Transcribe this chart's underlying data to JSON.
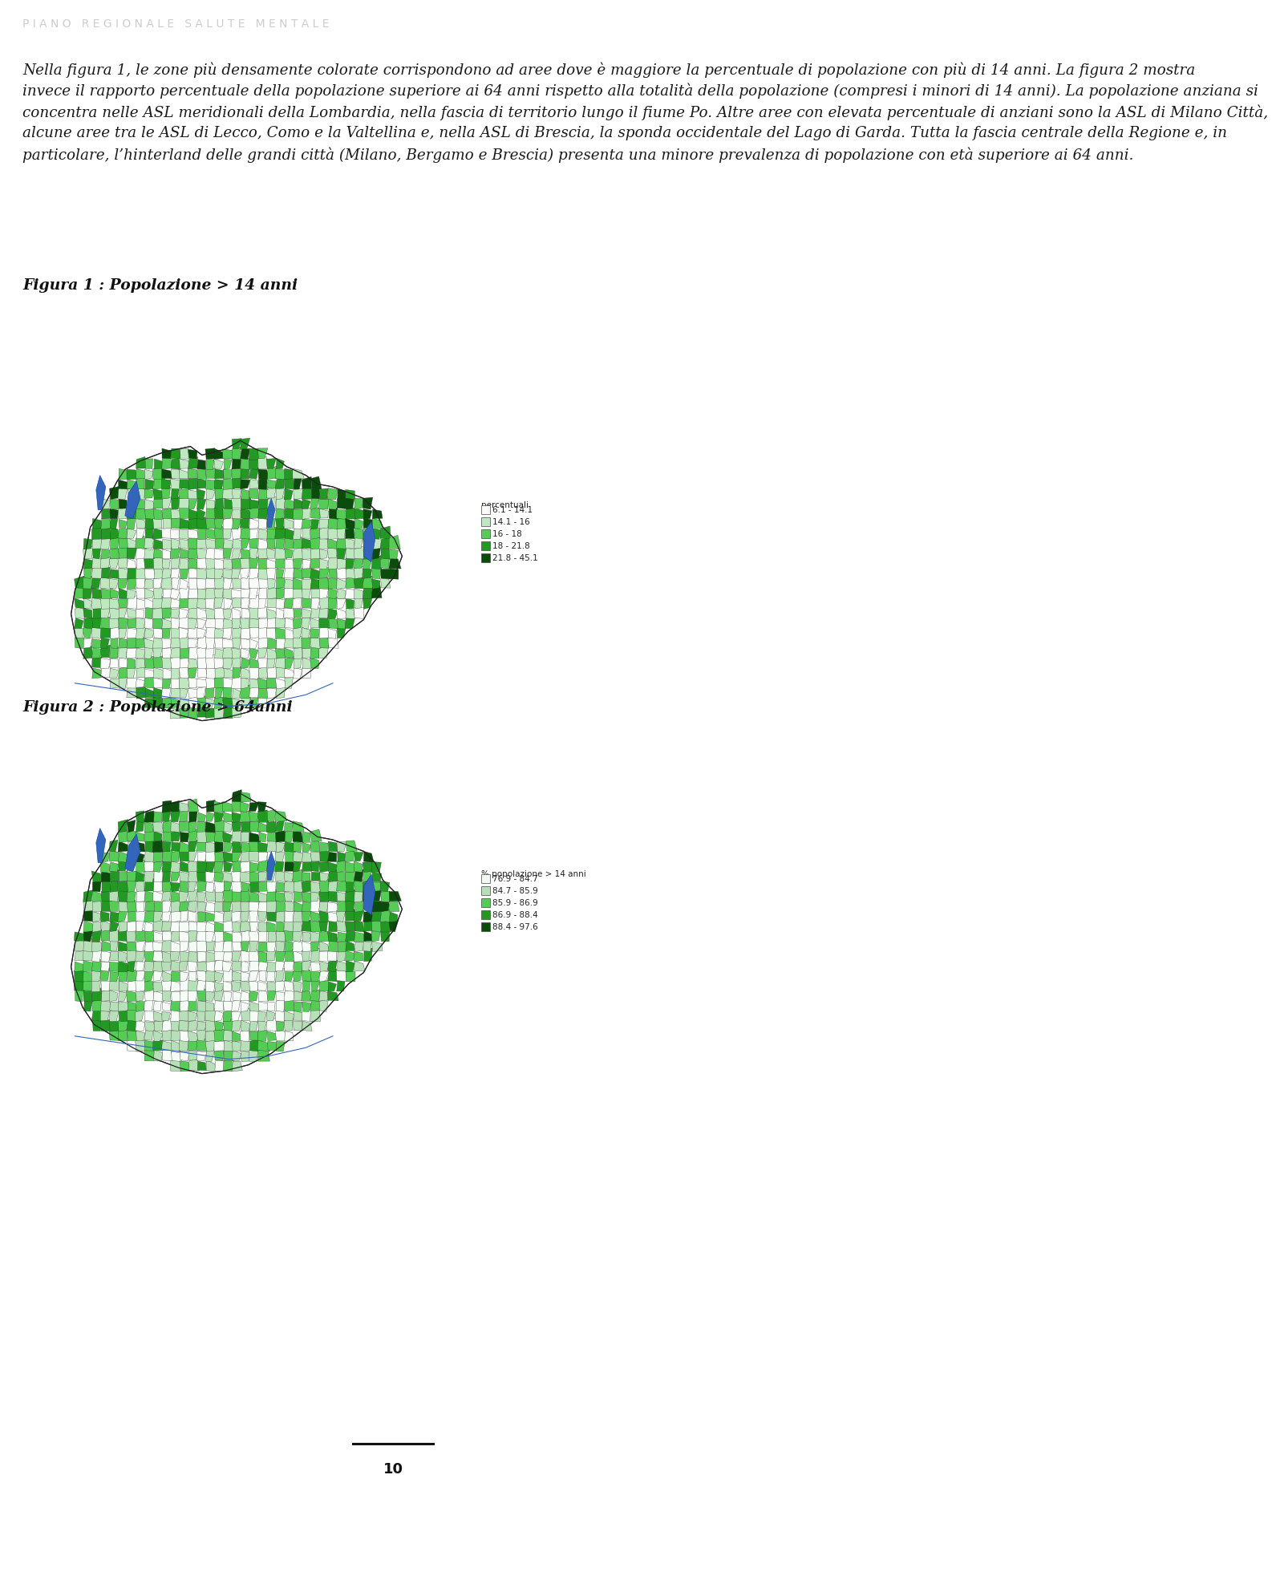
{
  "header_text": "P I A N O   R E G I O N A L E   S A L U T E   M E N T A L E",
  "header_color": "#cccccc",
  "header_fontsize": 10,
  "body_text_lines": [
    "Nella figura 1, le zone più densamente colorate corrispondono ad aree dove è maggiore la percentuale di popolazione con più di 14 anni. La figura 2 mostra",
    "invece il rapporto percentuale della popolazione superiore ai 64 anni rispetto alla totalità della popolazione (compresi i minori di 14 anni). La popolazione anziana si",
    "concentra nelle ASL meridionali della Lombardia, nella fascia di territorio lungo il fiume Po. Altre aree con elevata percentuale di anziani sono la ASL di Milano Città,",
    "alcune aree tra le ASL di Lecco, Como e la Valtellina e, nella ASL di Brescia, la sponda occidentale del Lago di Garda. Tutta la fascia centrale della Regione e, in",
    "particolare, l’hinterland delle grandi città (Milano, Bergamo e Brescia) presenta una minore prevalenza di popolazione con età superiore ai 64 anni."
  ],
  "body_fontsize": 13.2,
  "body_color": "#1a1a1a",
  "fig1_title": "Figura 1 : Popolazione > 14 anni",
  "fig2_title": "Figura 2 : Popolazione > 64anni",
  "fig_title_fontsize": 13.5,
  "fig_title_color": "#111111",
  "legend1_title": "% popolazione > 14 anni",
  "legend1_labels": [
    "76.9 - 84.7",
    "84.7 - 85.9",
    "85.9 - 86.9",
    "86.9 - 88.4",
    "88.4 - 97.6"
  ],
  "legend1_colors": [
    "#f5fbf5",
    "#b8e0b8",
    "#55cc55",
    "#229922",
    "#0a4d0a"
  ],
  "legend2_title": "percentuali",
  "legend2_labels": [
    "6.1 - 14.1",
    "14.1 - 16",
    "16 - 18",
    "18 - 21.8",
    "21.8 - 45.1"
  ],
  "legend2_colors": [
    "#f8fbf8",
    "#c0e8c0",
    "#55cc55",
    "#229922",
    "#0a4d0a"
  ],
  "page_number": "10",
  "background_color": "#ffffff"
}
